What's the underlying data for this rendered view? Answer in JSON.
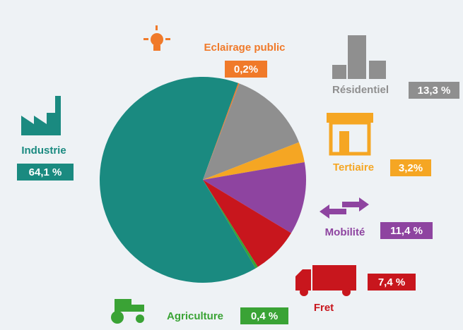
{
  "chart_data": {
    "type": "pie",
    "categories": [
      "Eclairage public",
      "Résidentiel",
      "Tertiaire",
      "Mobilité",
      "Fret",
      "Agriculture",
      "Industrie"
    ],
    "values": [
      0.2,
      13.3,
      3.2,
      11.4,
      7.4,
      0.4,
      64.1
    ],
    "value_labels": [
      "0,2%",
      "13,3 %",
      "3,2%",
      "11,4 %",
      "7,4 %",
      "0,4 %",
      "64,1 %"
    ],
    "colors": [
      "#f07a2a",
      "#8f8f8f",
      "#f5a623",
      "#8e44a0",
      "#c8161d",
      "#3aa335",
      "#1a8a80"
    ]
  }
}
